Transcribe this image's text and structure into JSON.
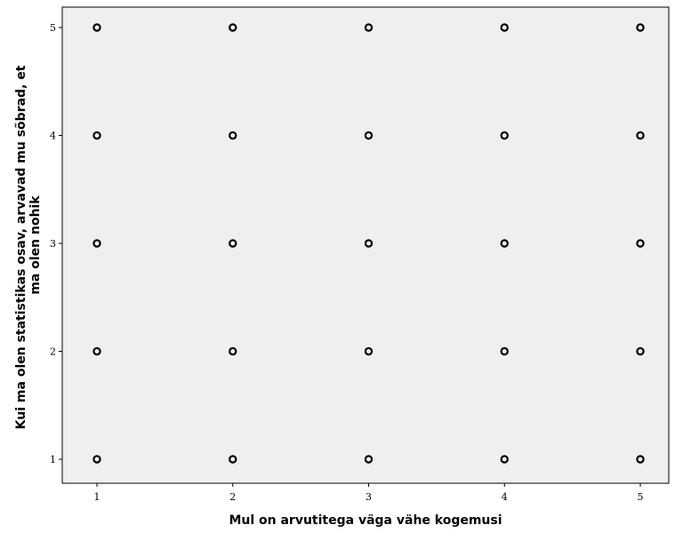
{
  "chart_data": {
    "type": "scatter",
    "title": "",
    "xlabel": "Mul on arvutitega väga vähe kogemusi",
    "ylabel_lines": [
      "Kui ma olen statistikas osav, arvavad mu sõbrad, et",
      "ma olen nohik"
    ],
    "xlim": [
      0.5,
      5.5
    ],
    "ylim": [
      0.6,
      5.4
    ],
    "x_ticks": [
      1,
      2,
      3,
      4,
      5
    ],
    "y_ticks": [
      1,
      2,
      3,
      4,
      5
    ],
    "grid": false,
    "legend": "none",
    "colors": {
      "plot_background": "#efefef",
      "marker": "#000000",
      "frame": "#000000"
    },
    "points": [
      {
        "x": 1,
        "y": 1
      },
      {
        "x": 2,
        "y": 1
      },
      {
        "x": 3,
        "y": 1
      },
      {
        "x": 4,
        "y": 1
      },
      {
        "x": 5,
        "y": 1
      },
      {
        "x": 1,
        "y": 2
      },
      {
        "x": 2,
        "y": 2
      },
      {
        "x": 3,
        "y": 2
      },
      {
        "x": 4,
        "y": 2
      },
      {
        "x": 5,
        "y": 2
      },
      {
        "x": 1,
        "y": 3
      },
      {
        "x": 2,
        "y": 3
      },
      {
        "x": 3,
        "y": 3
      },
      {
        "x": 4,
        "y": 3
      },
      {
        "x": 5,
        "y": 3
      },
      {
        "x": 1,
        "y": 4
      },
      {
        "x": 2,
        "y": 4
      },
      {
        "x": 3,
        "y": 4
      },
      {
        "x": 4,
        "y": 4
      },
      {
        "x": 5,
        "y": 4
      },
      {
        "x": 1,
        "y": 5
      },
      {
        "x": 2,
        "y": 5
      },
      {
        "x": 3,
        "y": 5
      },
      {
        "x": 4,
        "y": 5
      },
      {
        "x": 5,
        "y": 5
      }
    ]
  }
}
